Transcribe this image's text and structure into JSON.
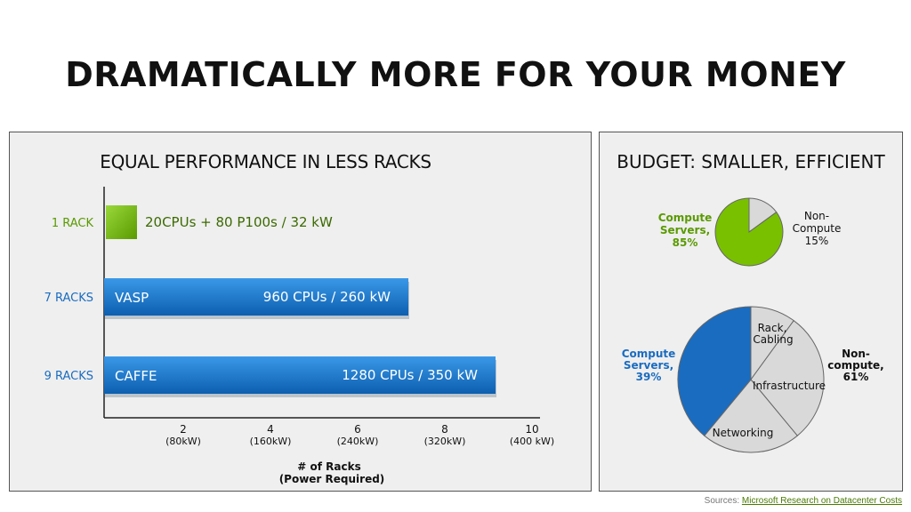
{
  "title": "DRAMATICALLY MORE FOR YOUR MONEY",
  "left_panel": {
    "title": "EQUAL PERFORMANCE IN LESS RACKS"
  },
  "right_panel": {
    "title": "BUDGET: SMALLER, EFFICIENT"
  },
  "sources": {
    "prefix": "Sources:",
    "link_text": "Microsoft Research on Datacenter Costs"
  },
  "colors": {
    "green": "#78c000",
    "blue": "#1a78d0",
    "green_text": "#5a9a00",
    "blue_text": "#1a6cc0"
  },
  "chart_data": [
    {
      "type": "bar",
      "orientation": "horizontal",
      "title": "EQUAL PERFORMANCE IN LESS RACKS",
      "categories": [
        "1 RACK",
        "7 RACKS",
        "9 RACKS"
      ],
      "values": [
        1,
        7,
        9
      ],
      "bar_labels_inside": [
        "",
        "VASP",
        "CAFFE"
      ],
      "bar_annotations": [
        "20CPUs + 80 P100s / 32 kW",
        "960 CPUs / 260 kW",
        "1280 CPUs / 350 kW"
      ],
      "bar_colors": [
        "#78c000",
        "#1a78d0",
        "#1a78d0"
      ],
      "x_ticks": [
        {
          "value": 2,
          "label": "2",
          "sublabel": "(80kW)"
        },
        {
          "value": 4,
          "label": "4",
          "sublabel": "(160kW)"
        },
        {
          "value": 6,
          "label": "6",
          "sublabel": "(240kW)"
        },
        {
          "value": 8,
          "label": "8",
          "sublabel": "(320kW)"
        },
        {
          "value": 10,
          "label": "10",
          "sublabel": "(400 kW)"
        }
      ],
      "xlabel": "# of Racks",
      "xlabel_sub": "(Power Required)",
      "xlim": [
        0,
        10
      ]
    },
    {
      "type": "pie",
      "slices": [
        {
          "label": "Compute Servers,",
          "pct_label": "85%",
          "value": 85,
          "color": "#78c000"
        },
        {
          "label": "Non-Compute",
          "pct_label": "15%",
          "value": 15,
          "color": "#d9d9d9"
        }
      ]
    },
    {
      "type": "pie",
      "slices": [
        {
          "label": "Compute Servers,",
          "pct_label": "39%",
          "value": 39,
          "color": "#1a6cc0"
        },
        {
          "label": "Rack, Cabling",
          "value": 10,
          "color": "#d9d9d9"
        },
        {
          "label": "Infrastructure",
          "value": 29,
          "color": "#d9d9d9"
        },
        {
          "label": "Networking",
          "value": 22,
          "color": "#d9d9d9"
        }
      ],
      "group_label": "Non-compute,",
      "group_pct": "61%"
    }
  ]
}
